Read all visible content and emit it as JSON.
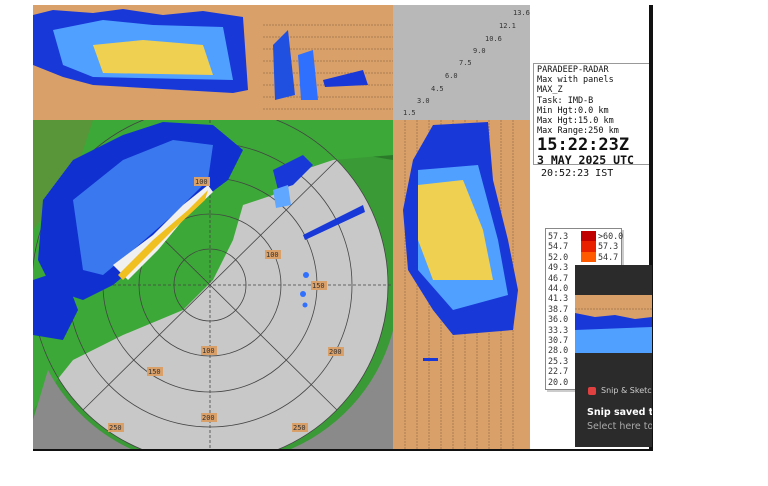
{
  "info": {
    "radar": "PARADEEP-RADAR",
    "product": "Max with panels",
    "type": "MAX_Z",
    "task": "Task: IMD-B",
    "min_hgt": "Min Hgt:0.0 km",
    "max_hgt": "Max Hgt:15.0 km",
    "max_range": "Max Range:250 km",
    "time_utc": "15:22:23Z",
    "date": "3 MAY 2025 UTC",
    "time_ist": "20:52:23 IST"
  },
  "height_labels": [
    "1.5",
    "3.0",
    "4.5",
    "6.0",
    "7.5",
    "9.0",
    "10.6",
    "12.1",
    "13.6"
  ],
  "range_labels": [
    "100",
    "150",
    "200",
    "250"
  ],
  "legend": {
    "left": [
      "57.3",
      "54.7",
      "52.0",
      "49.3",
      "46.7",
      "44.0",
      "41.3",
      "38.7",
      "36.0",
      "33.3",
      "30.7",
      "28.0",
      "25.3",
      "22.7",
      "20.0"
    ],
    "right": [
      ">60.0",
      "57.3",
      "54.7"
    ],
    "colors": [
      "#c00000",
      "#e82000",
      "#ff5a00"
    ]
  },
  "snip": {
    "app": "Snip & Sketch",
    "title": "Snip saved to",
    "subtitle": "Select here to"
  },
  "colors": {
    "land": "#3ca838",
    "sea": "#c8c8c8",
    "panel": "#d9a06a",
    "echo_blue": "#1030d0",
    "echo_yellow": "#f0c020"
  }
}
